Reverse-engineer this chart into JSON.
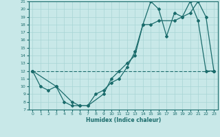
{
  "xlabel": "Humidex (Indice chaleur)",
  "bg_color": "#c8e8e8",
  "line_color": "#1a6b6b",
  "grid_color": "#a8d4d4",
  "xlim": [
    -0.5,
    23.5
  ],
  "ylim": [
    7,
    21
  ],
  "yticks": [
    7,
    8,
    9,
    10,
    11,
    12,
    13,
    14,
    15,
    16,
    17,
    18,
    19,
    20,
    21
  ],
  "xticks": [
    0,
    1,
    2,
    3,
    4,
    5,
    6,
    7,
    8,
    9,
    10,
    11,
    12,
    13,
    14,
    15,
    16,
    17,
    18,
    19,
    20,
    21,
    22,
    23
  ],
  "line1_x": [
    0,
    1,
    2,
    3,
    4,
    5,
    6,
    7,
    8,
    9,
    10,
    11,
    12,
    13,
    14,
    15,
    16,
    17,
    18,
    19,
    20,
    21,
    22,
    23
  ],
  "line1_y": [
    12,
    10,
    9.5,
    10,
    8,
    7.5,
    7.5,
    7.5,
    9,
    9.5,
    10.5,
    11,
    12.5,
    14.5,
    18,
    21,
    20,
    16.5,
    19.5,
    19,
    21,
    18.5,
    12,
    12
  ],
  "line2_x": [
    0,
    3,
    5,
    6,
    7,
    9,
    10,
    11,
    12,
    13,
    14,
    15,
    16,
    18,
    19,
    20,
    21,
    22,
    23
  ],
  "line2_y": [
    12,
    10,
    8,
    7.5,
    7.5,
    9,
    11,
    12,
    13,
    14,
    18,
    18,
    18.5,
    18.5,
    19,
    19.5,
    21,
    19,
    12
  ],
  "line3_x": [
    0,
    23
  ],
  "line3_y": [
    12,
    12
  ]
}
